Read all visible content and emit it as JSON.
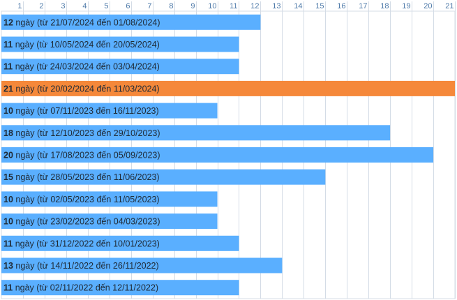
{
  "chart_data": {
    "type": "bar",
    "orientation": "horizontal",
    "x_ticks": [
      1,
      2,
      3,
      4,
      5,
      6,
      7,
      8,
      9,
      10,
      11,
      12,
      13,
      14,
      15,
      16,
      17,
      18,
      19,
      20,
      21
    ],
    "xlim": [
      0,
      21
    ],
    "grid": true,
    "colors": {
      "default": "#5aafff",
      "highlight": "#f5883a",
      "grid": "#d4dce6"
    },
    "bars": [
      {
        "value": 12,
        "text": "ngày (từ 21/07/2024 đến 01/08/2024)",
        "highlight": false
      },
      {
        "value": 11,
        "text": "ngày (từ 10/05/2024 đến 20/05/2024)",
        "highlight": false
      },
      {
        "value": 11,
        "text": "ngày (từ 24/03/2024 đến 03/04/2024)",
        "highlight": false
      },
      {
        "value": 21,
        "text": "ngày (từ 20/02/2024 đến 11/03/2024)",
        "highlight": true
      },
      {
        "value": 10,
        "text": "ngày (từ 07/11/2023 đến 16/11/2023)",
        "highlight": false
      },
      {
        "value": 18,
        "text": "ngày (từ 12/10/2023 đến 29/10/2023)",
        "highlight": false
      },
      {
        "value": 20,
        "text": "ngày (từ 17/08/2023 đến 05/09/2023)",
        "highlight": false
      },
      {
        "value": 15,
        "text": "ngày (từ 28/05/2023 đến 11/06/2023)",
        "highlight": false
      },
      {
        "value": 10,
        "text": "ngày (từ 02/05/2023 đến 11/05/2023)",
        "highlight": false
      },
      {
        "value": 10,
        "text": "ngày (từ 23/02/2023 đến 04/03/2023)",
        "highlight": false
      },
      {
        "value": 11,
        "text": "ngày (từ 31/12/2022 đến 10/01/2023)",
        "highlight": false
      },
      {
        "value": 13,
        "text": "ngày (từ 14/11/2022 đến 26/11/2022)",
        "highlight": false
      },
      {
        "value": 11,
        "text": "ngày (từ 02/11/2022 đến 12/11/2022)",
        "highlight": false
      }
    ]
  }
}
